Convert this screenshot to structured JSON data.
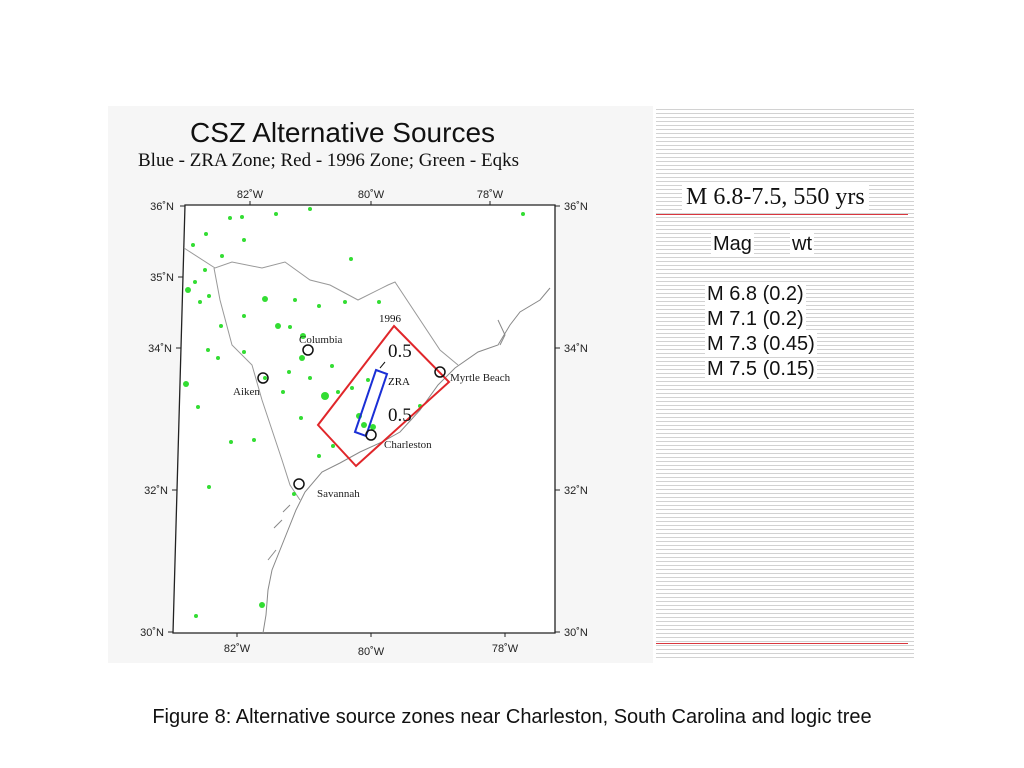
{
  "map": {
    "title": "CSZ Alternative Sources",
    "subtitle": "Blue - ZRA Zone; Red - 1996 Zone; Green - Eqks",
    "lon_ticks_top": [
      "82˚W",
      "80˚W",
      "78˚W"
    ],
    "lon_ticks_bottom": [
      "82˚W",
      "80˚W",
      "78˚W"
    ],
    "lat_ticks_left": [
      "36˚N",
      "35˚N",
      "34˚N",
      "32˚N",
      "30˚N"
    ],
    "lat_ticks_right": [
      "36˚N",
      "34˚N",
      "32˚N",
      "30˚N"
    ],
    "cities": [
      "Columbia",
      "Aiken",
      "Myrtle Beach",
      "Charleston",
      "Savannah"
    ],
    "zone_1996_label": "1996",
    "zone_zra_label": "ZRA",
    "weight_upper": "0.5",
    "weight_lower": "0.5",
    "colors": {
      "zra_zone": "#1a2fd6",
      "zone_1996": "#e0262a",
      "earthquakes": "#33dd33"
    }
  },
  "logic_tree": {
    "heading": "M 6.8-7.5, 550 yrs",
    "mag_header": "Mag",
    "wt_header": "wt",
    "rows": [
      "M 6.8 (0.2)",
      "M 7.1 (0.2)",
      "M 7.3 (0.45)",
      "M 7.5 (0.15)"
    ]
  },
  "caption": "Figure 8: Alternative source zones near Charleston, South Carolina and logic tree"
}
